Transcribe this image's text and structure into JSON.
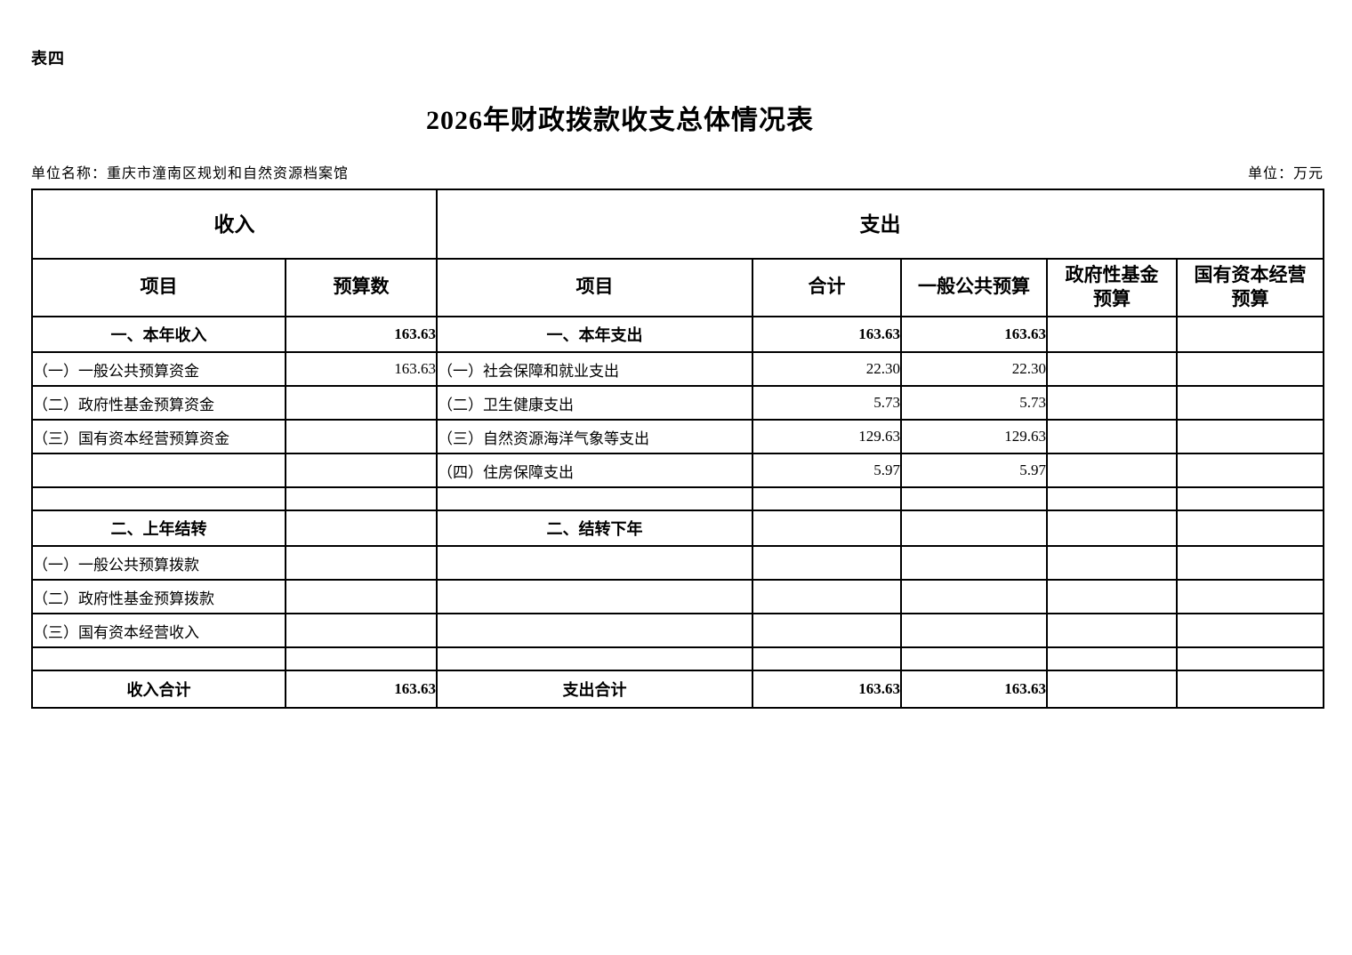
{
  "page": {
    "tag": "表四",
    "title": "2026年财政拨款收支总体情况表",
    "unit_name": "单位名称：重庆市潼南区规划和自然资源档案馆",
    "unit": "单位：万元"
  },
  "table": {
    "group_headers": {
      "income": "收入",
      "expenditure": "支出"
    },
    "columns": [
      "项目",
      "预算数",
      "项目",
      "合计",
      "一般公共预算",
      "政府性基金\n预算",
      "国有资本经营\n预算"
    ],
    "rows": [
      {
        "type": "section",
        "cells": [
          "一、本年收入",
          "163.63",
          "一、本年支出",
          "163.63",
          "163.63",
          "",
          ""
        ]
      },
      {
        "type": "sub",
        "cells": [
          "（一）一般公共预算资金",
          "163.63",
          "（一）社会保障和就业支出",
          "22.30",
          "22.30",
          "",
          ""
        ]
      },
      {
        "type": "sub",
        "cells": [
          "（二）政府性基金预算资金",
          "",
          "（二）卫生健康支出",
          "5.73",
          "5.73",
          "",
          ""
        ]
      },
      {
        "type": "sub",
        "cells": [
          "（三）国有资本经营预算资金",
          "",
          "（三）自然资源海洋气象等支出",
          "129.63",
          "129.63",
          "",
          ""
        ]
      },
      {
        "type": "sub",
        "cells": [
          "",
          "",
          "（四）住房保障支出",
          "5.97",
          "5.97",
          "",
          ""
        ]
      },
      {
        "type": "empty",
        "cells": [
          "",
          "",
          "",
          "",
          "",
          "",
          ""
        ]
      },
      {
        "type": "section",
        "cells": [
          "二、上年结转",
          "",
          "二、结转下年",
          "",
          "",
          "",
          ""
        ]
      },
      {
        "type": "sub",
        "cells": [
          "（一）一般公共预算拨款",
          "",
          "",
          "",
          "",
          "",
          ""
        ]
      },
      {
        "type": "sub",
        "cells": [
          "（二）政府性基金预算拨款",
          "",
          "",
          "",
          "",
          "",
          ""
        ]
      },
      {
        "type": "sub",
        "cells": [
          "（三）国有资本经营收入",
          "",
          "",
          "",
          "",
          "",
          ""
        ]
      },
      {
        "type": "empty",
        "cells": [
          "",
          "",
          "",
          "",
          "",
          "",
          ""
        ]
      },
      {
        "type": "total",
        "cells": [
          "收入合计",
          "163.63",
          "支出合计",
          "163.63",
          "163.63",
          "",
          ""
        ]
      }
    ]
  }
}
